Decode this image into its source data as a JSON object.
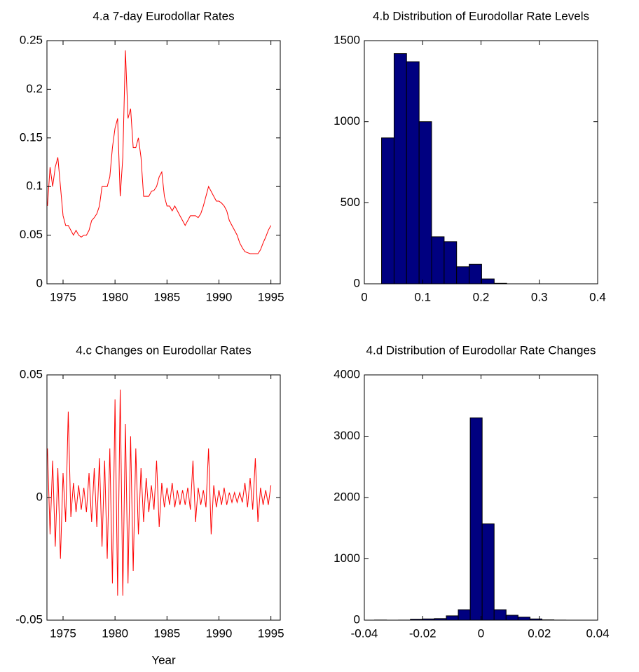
{
  "chart_data": [
    {
      "type": "line",
      "title": "4.a 7-day Eurodollar Rates",
      "xlim": [
        1973.45,
        1995.9
      ],
      "xticks": [
        1975,
        1980,
        1985,
        1990,
        1995
      ],
      "ylim": [
        0,
        0.25
      ],
      "yticks": [
        0,
        0.05,
        0.1,
        0.15,
        0.2,
        0.25
      ],
      "series": [
        {
          "color": "#ff0000",
          "x": [
            1973.5,
            1973.75,
            1974,
            1974.25,
            1974.5,
            1974.75,
            1975,
            1975.25,
            1975.5,
            1975.75,
            1976,
            1976.25,
            1976.5,
            1976.75,
            1977,
            1977.25,
            1977.5,
            1977.75,
            1978,
            1978.25,
            1978.5,
            1978.75,
            1979,
            1979.25,
            1979.5,
            1979.75,
            1980,
            1980.25,
            1980.5,
            1980.75,
            1981,
            1981.25,
            1981.5,
            1981.75,
            1982,
            1982.25,
            1982.5,
            1982.75,
            1983,
            1983.25,
            1983.5,
            1983.75,
            1984,
            1984.25,
            1984.5,
            1984.75,
            1985,
            1985.25,
            1985.5,
            1985.75,
            1986,
            1986.25,
            1986.5,
            1986.75,
            1987,
            1987.25,
            1987.5,
            1987.75,
            1988,
            1988.25,
            1988.5,
            1988.75,
            1989,
            1989.25,
            1989.5,
            1989.75,
            1990,
            1990.25,
            1990.5,
            1990.75,
            1991,
            1991.25,
            1991.5,
            1991.75,
            1992,
            1992.25,
            1992.5,
            1992.75,
            1993,
            1993.25,
            1993.5,
            1993.75,
            1994,
            1994.25,
            1994.5,
            1994.75,
            1995
          ],
          "values": [
            0.08,
            0.12,
            0.1,
            0.12,
            0.13,
            0.1,
            0.07,
            0.06,
            0.06,
            0.055,
            0.05,
            0.055,
            0.05,
            0.048,
            0.05,
            0.05,
            0.055,
            0.065,
            0.068,
            0.072,
            0.08,
            0.1,
            0.1,
            0.1,
            0.11,
            0.14,
            0.16,
            0.17,
            0.09,
            0.13,
            0.24,
            0.17,
            0.18,
            0.14,
            0.14,
            0.15,
            0.13,
            0.09,
            0.09,
            0.09,
            0.095,
            0.096,
            0.1,
            0.11,
            0.115,
            0.09,
            0.08,
            0.08,
            0.075,
            0.08,
            0.075,
            0.07,
            0.065,
            0.06,
            0.065,
            0.07,
            0.07,
            0.07,
            0.068,
            0.072,
            0.08,
            0.09,
            0.1,
            0.095,
            0.09,
            0.085,
            0.085,
            0.083,
            0.08,
            0.075,
            0.065,
            0.06,
            0.055,
            0.05,
            0.042,
            0.037,
            0.033,
            0.032,
            0.031,
            0.031,
            0.031,
            0.031,
            0.035,
            0.042,
            0.048,
            0.055,
            0.06
          ]
        }
      ]
    },
    {
      "type": "histogram",
      "title": "4.b Distribution of Eurodollar Rate Levels",
      "xlim": [
        0,
        0.4
      ],
      "xticks": [
        0,
        0.1,
        0.2,
        0.3,
        0.4
      ],
      "ylim": [
        0,
        1500
      ],
      "yticks": [
        0,
        500,
        1000,
        1500
      ],
      "color": "#000080",
      "bins": [
        0.0295,
        0.051,
        0.0724,
        0.0939,
        0.1153,
        0.1368,
        0.1582,
        0.1797,
        0.2011,
        0.2226,
        0.244
      ],
      "values": [
        900,
        1420,
        1370,
        1000,
        290,
        260,
        105,
        120,
        30,
        3
      ]
    },
    {
      "type": "line",
      "title": "4.c Changes on Eurodollar Rates",
      "xlabel": "Year",
      "xlim": [
        1973.45,
        1995.9
      ],
      "xticks": [
        1975,
        1980,
        1985,
        1990,
        1995
      ],
      "ylim": [
        -0.05,
        0.05
      ],
      "yticks": [
        -0.05,
        0,
        0.05
      ],
      "series": [
        {
          "color": "#ff0000",
          "x": [
            1973.5,
            1973.75,
            1974,
            1974.25,
            1974.5,
            1974.75,
            1975,
            1975.25,
            1975.5,
            1975.75,
            1976,
            1976.25,
            1976.5,
            1976.75,
            1977,
            1977.25,
            1977.5,
            1977.75,
            1978,
            1978.25,
            1978.5,
            1978.75,
            1979,
            1979.25,
            1979.5,
            1979.75,
            1980,
            1980.25,
            1980.5,
            1980.75,
            1981,
            1981.25,
            1981.5,
            1981.75,
            1982,
            1982.25,
            1982.5,
            1982.75,
            1983,
            1983.25,
            1983.5,
            1983.75,
            1984,
            1984.25,
            1984.5,
            1984.75,
            1985,
            1985.25,
            1985.5,
            1985.75,
            1986,
            1986.25,
            1986.5,
            1986.75,
            1987,
            1987.25,
            1987.5,
            1987.75,
            1988,
            1988.25,
            1988.5,
            1988.75,
            1989,
            1989.25,
            1989.5,
            1989.75,
            1990,
            1990.25,
            1990.5,
            1990.75,
            1991,
            1991.25,
            1991.5,
            1991.75,
            1992,
            1992.25,
            1992.5,
            1992.75,
            1993,
            1993.25,
            1993.5,
            1993.75,
            1994,
            1994.25,
            1994.5,
            1994.75,
            1995
          ],
          "values": [
            0.02,
            -0.015,
            0.015,
            -0.02,
            0.012,
            -0.025,
            0.01,
            -0.01,
            0.035,
            -0.008,
            0.006,
            -0.006,
            0.005,
            -0.005,
            0.004,
            -0.006,
            0.01,
            -0.01,
            0.012,
            -0.012,
            0.016,
            -0.02,
            0.015,
            -0.025,
            0.02,
            -0.035,
            0.04,
            -0.04,
            0.044,
            -0.04,
            0.03,
            -0.035,
            0.025,
            -0.03,
            0.02,
            -0.015,
            0.012,
            -0.01,
            0.008,
            -0.006,
            0.005,
            -0.005,
            0.015,
            -0.012,
            0.006,
            -0.004,
            0.004,
            -0.003,
            0.006,
            -0.004,
            0.003,
            -0.003,
            0.003,
            -0.003,
            0.004,
            -0.005,
            0.015,
            -0.01,
            0.004,
            -0.003,
            0.003,
            -0.004,
            0.02,
            -0.015,
            0.005,
            -0.004,
            0.003,
            -0.003,
            0.004,
            -0.003,
            0.002,
            -0.002,
            0.002,
            -0.002,
            0.002,
            -0.002,
            0.006,
            -0.004,
            0.008,
            -0.005,
            0.016,
            -0.01,
            0.004,
            -0.003,
            0.003,
            -0.003,
            0.005
          ]
        }
      ]
    },
    {
      "type": "histogram",
      "title": "4.d Distribution of Eurodollar Rate Changes",
      "xlim": [
        -0.04,
        0.04
      ],
      "xticks": [
        -0.04,
        -0.02,
        0,
        0.02,
        0.04
      ],
      "ylim": [
        0,
        4000
      ],
      "yticks": [
        0,
        1000,
        2000,
        3000,
        4000
      ],
      "color": "#000080",
      "bins": [
        -0.0365,
        -0.0324,
        -0.0283,
        -0.0242,
        -0.0201,
        -0.016,
        -0.0119,
        -0.0078,
        -0.0037,
        0.0004,
        0.0045,
        0.0086,
        0.0127,
        0.0168,
        0.0209,
        0.025,
        0.0291,
        0.0332,
        0.0373,
        0.0414,
        0.0455
      ],
      "values": [
        2,
        0,
        1,
        15,
        20,
        25,
        70,
        170,
        3300,
        1570,
        170,
        80,
        50,
        20,
        5,
        1,
        0,
        0,
        0,
        1
      ]
    }
  ]
}
